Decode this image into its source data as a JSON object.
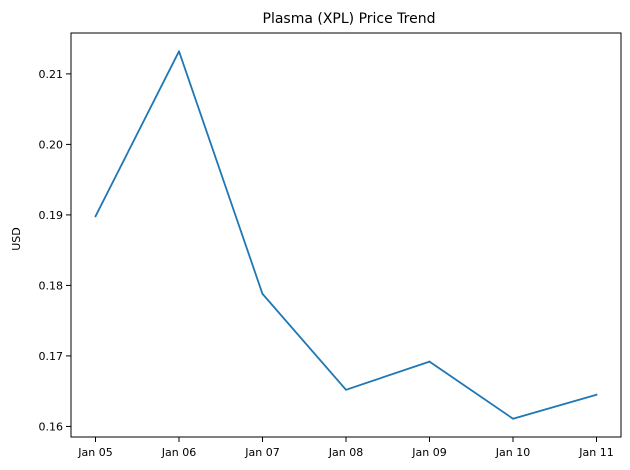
{
  "chart_data": {
    "type": "line",
    "title": "Plasma (XPL) Price Trend",
    "xlabel": "",
    "ylabel": "USD",
    "x": [
      "Jan 05",
      "Jan 06",
      "Jan 07",
      "Jan 08",
      "Jan 09",
      "Jan 10",
      "Jan 11"
    ],
    "series": [
      {
        "values": [
          0.1898,
          0.2132,
          0.1788,
          0.1652,
          0.1692,
          0.1611,
          0.1645
        ],
        "color": "#1f77b4"
      }
    ],
    "ylim": [
      0.1585,
      0.2158
    ],
    "yticks": [
      "0.16",
      "0.17",
      "0.18",
      "0.19",
      "0.20",
      "0.21"
    ],
    "grid": false,
    "legend": "none"
  }
}
